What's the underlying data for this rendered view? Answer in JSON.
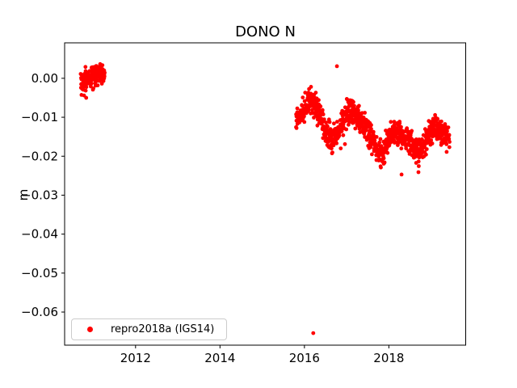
{
  "title": "DONO N",
  "ylabel": "m",
  "legend": {
    "label": "repro2018a (IGS14)",
    "marker_color": "#ff0000"
  },
  "colors": {
    "point": "#ff0000",
    "axis": "#000000",
    "tick_text": "#000000",
    "legend_border": "#cccccc",
    "background": "#ffffff"
  },
  "chart_data": {
    "type": "scatter",
    "title": "DONO N",
    "xlabel": "",
    "ylabel": "m",
    "grid": false,
    "legend_position": "lower left",
    "xlim": [
      2010.32,
      2019.82
    ],
    "ylim": [
      -0.0685,
      0.0091
    ],
    "xticks": [
      {
        "value": 2012,
        "label": "2012"
      },
      {
        "value": 2014,
        "label": "2014"
      },
      {
        "value": 2016,
        "label": "2016"
      },
      {
        "value": 2018,
        "label": "2018"
      }
    ],
    "yticks": [
      {
        "value": 0.0,
        "label": "0.00"
      },
      {
        "value": -0.01,
        "label": "−0.01"
      },
      {
        "value": -0.02,
        "label": "−0.02"
      },
      {
        "value": -0.03,
        "label": "−0.03"
      },
      {
        "value": -0.04,
        "label": "−0.04"
      },
      {
        "value": -0.05,
        "label": "−0.05"
      },
      {
        "value": -0.06,
        "label": "−0.06"
      }
    ],
    "series": [
      {
        "name": "repro2018a (IGS14)",
        "color": "#ff0000",
        "marker": "dot",
        "marker_radius_px": 2.4,
        "segments": [
          {
            "x_start": 2010.7,
            "x_end": 2011.27,
            "n": 150,
            "sigma": 0.0014,
            "trend": [
              [
                2010.7,
                -0.001
              ],
              [
                2010.82,
                -0.0004
              ],
              [
                2010.95,
                0.0002
              ],
              [
                2011.05,
                0.0008
              ],
              [
                2011.17,
                0.002
              ],
              [
                2011.27,
                0.0012
              ]
            ]
          },
          {
            "x_start": 2015.8,
            "x_end": 2019.44,
            "n": 950,
            "sigma": 0.0016,
            "trend": [
              [
                2015.8,
                -0.0122
              ],
              [
                2015.95,
                -0.009
              ],
              [
                2016.08,
                -0.0062
              ],
              [
                2016.17,
                -0.0055
              ],
              [
                2016.35,
                -0.0092
              ],
              [
                2016.5,
                -0.0132
              ],
              [
                2016.68,
                -0.0158
              ],
              [
                2016.82,
                -0.0133
              ],
              [
                2016.95,
                -0.01
              ],
              [
                2017.05,
                -0.0082
              ],
              [
                2017.15,
                -0.009
              ],
              [
                2017.3,
                -0.0106
              ],
              [
                2017.48,
                -0.0128
              ],
              [
                2017.62,
                -0.0162
              ],
              [
                2017.77,
                -0.0195
              ],
              [
                2017.9,
                -0.0178
              ],
              [
                2018.02,
                -0.0152
              ],
              [
                2018.14,
                -0.0137
              ],
              [
                2018.25,
                -0.014
              ],
              [
                2018.34,
                -0.0158
              ],
              [
                2018.44,
                -0.0142
              ],
              [
                2018.58,
                -0.018
              ],
              [
                2018.7,
                -0.0188
              ],
              [
                2018.84,
                -0.017
              ],
              [
                2018.97,
                -0.0143
              ],
              [
                2019.1,
                -0.0126
              ],
              [
                2019.24,
                -0.0134
              ],
              [
                2019.35,
                -0.0148
              ],
              [
                2019.44,
                -0.016
              ]
            ]
          }
        ],
        "outliers": [
          [
            2016.21,
            -0.0654
          ],
          [
            2016.77,
            0.0031
          ],
          [
            2010.78,
            -0.0044
          ],
          [
            2010.83,
            -0.005
          ],
          [
            2016.86,
            -0.018
          ],
          [
            2016.96,
            -0.0169
          ],
          [
            2017.81,
            -0.0229
          ],
          [
            2018.3,
            -0.0247
          ],
          [
            2018.7,
            -0.0241
          ]
        ]
      }
    ]
  }
}
